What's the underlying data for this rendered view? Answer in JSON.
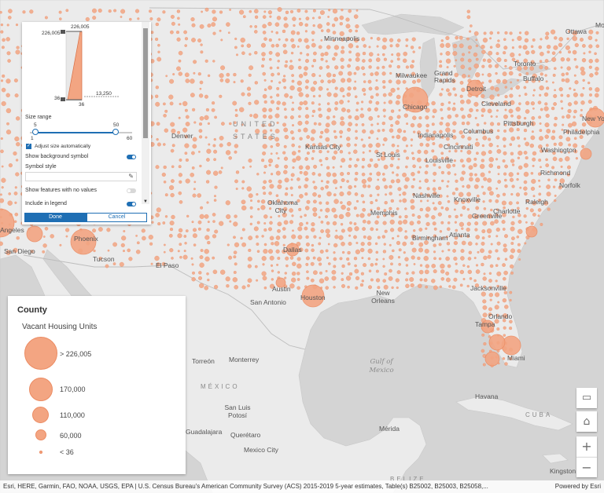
{
  "map": {
    "country_labels": {
      "usa": "UNITED STATES",
      "mexico": "MÉXICO",
      "cuba": "CUBA",
      "belize": "BELIZE"
    },
    "water_label": "Gulf of Mexico",
    "cities": [
      "Ottawa",
      "Montreal",
      "Minneapolis",
      "Toronto",
      "Buffalo",
      "Milwaukee",
      "Grand Rapids",
      "Detroit",
      "Chicago",
      "Cleveland",
      "Pittsburgh",
      "New York",
      "Philadelphia",
      "Denver",
      "Columbus",
      "Indianapolis",
      "Cincinnati",
      "Washington",
      "Kansas City",
      "St Louis",
      "Louisville",
      "Richmond",
      "Norfolk",
      "Nashville",
      "Oklahoma City",
      "Knoxville",
      "Raleigh",
      "Memphis",
      "Charlotte",
      "Greenville",
      "Angeles",
      "Phoenix",
      "San Diego",
      "Tucson",
      "Birmingham",
      "Atlanta",
      "Dallas",
      "El Paso",
      "Jacksonville",
      "Austin",
      "San Antonio",
      "Houston",
      "New Orleans",
      "Orlando",
      "Tampa",
      "Miami",
      "Torreón",
      "Monterrey",
      "Havana",
      "San Luis Potosí",
      "Guadalajara",
      "Querétaro",
      "Mexico City",
      "Mérida",
      "Kingston"
    ]
  },
  "style_panel": {
    "histogram": {
      "max_label": "226,005",
      "top_label": "226,005",
      "bottom_label": "36",
      "min_label": "36",
      "avg_label": "13,250"
    },
    "size_range_label": "Size range",
    "slider_values": {
      "low": "5",
      "high": "50",
      "min": "1",
      "max": "60"
    },
    "adjust_label": "Adjust size automatically",
    "show_background_label": "Show background symbol",
    "symbol_style_label": "Symbol style",
    "show_no_values_label": "Show features with no values",
    "include_legend_label": "Include in legend",
    "done_label": "Done",
    "cancel_label": "Cancel"
  },
  "legend": {
    "title": "County",
    "field": "Vacant Housing Units",
    "items": [
      {
        "label": "> 226,005",
        "value": 226005
      },
      {
        "label": "170,000",
        "value": 170000
      },
      {
        "label": "110,000",
        "value": 110000
      },
      {
        "label": "60,000",
        "value": 60000
      },
      {
        "label": "< 36",
        "value": 36
      }
    ]
  },
  "controls": {
    "basemap_icon": "monitor-icon",
    "home_icon": "home-icon",
    "zoom_in": "+",
    "zoom_out": "−"
  },
  "attribution": {
    "text": "Esri, HERE, Garmin, FAO, NOAA, USGS, EPA | U.S. Census Bureau's American Community Survey (ACS) 2015-2019 5-year estimates, Table(s) B25002, B25003, B25058,...",
    "powered": "Powered by Esri"
  },
  "colors": {
    "symbol_fill": "#f3a582",
    "symbol_stroke": "#ec8c63",
    "land": "#ebebeb",
    "water": "#d4d4d4",
    "accent": "#1f6fb4"
  }
}
